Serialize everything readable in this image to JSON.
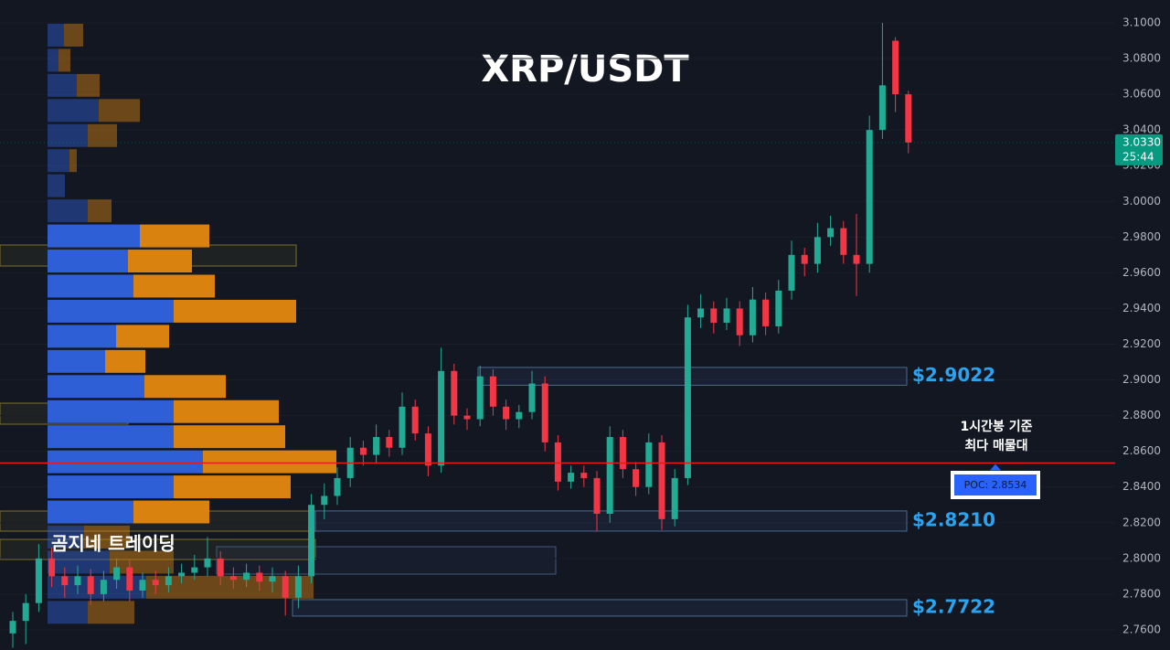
{
  "chart_data": {
    "type": "candlestick",
    "title": "XRP/USDT",
    "watermark": "곰지네 트레이딩",
    "up_color": "#22ab94",
    "down_color": "#f23645",
    "open": [
      2.758,
      2.765,
      2.775,
      2.8,
      2.79,
      2.785,
      2.79,
      2.78,
      2.788,
      2.795,
      2.782,
      2.788,
      2.785,
      2.79,
      2.792,
      2.795,
      2.8,
      2.79,
      2.788,
      2.792,
      2.787,
      2.79,
      2.778,
      2.79,
      2.83,
      2.835,
      2.845,
      2.862,
      2.858,
      2.868,
      2.862,
      2.885,
      2.87,
      2.852,
      2.905,
      2.88,
      2.878,
      2.902,
      2.885,
      2.878,
      2.882,
      2.898,
      2.865,
      2.843,
      2.848,
      2.845,
      2.825,
      2.868,
      2.85,
      2.84,
      2.865,
      2.822,
      2.845,
      2.935,
      2.94,
      2.932,
      2.94,
      2.925,
      2.945,
      2.93,
      2.95,
      2.97,
      2.965,
      2.98,
      2.985,
      2.97,
      2.965,
      3.04,
      3.09,
      3.06
    ],
    "high": [
      2.77,
      2.78,
      2.808,
      2.806,
      2.795,
      2.796,
      2.794,
      2.793,
      2.8,
      2.799,
      2.792,
      2.793,
      2.795,
      2.797,
      2.802,
      2.812,
      2.804,
      2.795,
      2.797,
      2.796,
      2.795,
      2.793,
      2.796,
      2.836,
      2.842,
      2.851,
      2.868,
      2.866,
      2.875,
      2.872,
      2.893,
      2.889,
      2.874,
      2.918,
      2.909,
      2.884,
      2.908,
      2.906,
      2.889,
      2.886,
      2.905,
      2.902,
      2.869,
      2.852,
      2.852,
      2.849,
      2.874,
      2.872,
      2.854,
      2.87,
      2.869,
      2.85,
      2.942,
      2.948,
      2.944,
      2.946,
      2.944,
      2.952,
      2.949,
      2.956,
      2.978,
      2.974,
      2.988,
      2.992,
      2.989,
      2.993,
      3.048,
      3.1,
      3.092,
      3.062
    ],
    "low": [
      2.75,
      2.752,
      2.77,
      2.784,
      2.778,
      2.78,
      2.774,
      2.776,
      2.783,
      2.776,
      2.778,
      2.78,
      2.781,
      2.786,
      2.788,
      2.79,
      2.785,
      2.783,
      2.784,
      2.782,
      2.781,
      2.768,
      2.772,
      2.786,
      2.822,
      2.83,
      2.84,
      2.852,
      2.853,
      2.857,
      2.858,
      2.866,
      2.846,
      2.848,
      2.875,
      2.872,
      2.874,
      2.88,
      2.872,
      2.873,
      2.878,
      2.86,
      2.838,
      2.839,
      2.84,
      2.815,
      2.82,
      2.845,
      2.835,
      2.836,
      2.816,
      2.818,
      2.841,
      2.929,
      2.926,
      2.928,
      2.919,
      2.921,
      2.925,
      2.926,
      2.945,
      2.958,
      2.96,
      2.975,
      2.965,
      2.947,
      2.96,
      3.035,
      3.05,
      3.027
    ],
    "close": [
      2.765,
      2.775,
      2.8,
      2.79,
      2.785,
      2.79,
      2.78,
      2.788,
      2.795,
      2.782,
      2.788,
      2.785,
      2.79,
      2.792,
      2.795,
      2.8,
      2.79,
      2.788,
      2.792,
      2.787,
      2.79,
      2.778,
      2.79,
      2.83,
      2.835,
      2.845,
      2.862,
      2.858,
      2.868,
      2.862,
      2.885,
      2.87,
      2.852,
      2.905,
      2.88,
      2.878,
      2.902,
      2.885,
      2.878,
      2.882,
      2.898,
      2.865,
      2.843,
      2.848,
      2.845,
      2.825,
      2.868,
      2.85,
      2.84,
      2.865,
      2.822,
      2.845,
      2.935,
      2.94,
      2.932,
      2.94,
      2.925,
      2.945,
      2.93,
      2.95,
      2.97,
      2.965,
      2.98,
      2.985,
      2.97,
      2.965,
      3.04,
      3.065,
      3.06,
      3.033
    ],
    "ylim": [
      2.7487,
      3.1128
    ],
    "yticks": [
      {
        "value": 2.76,
        "label": "2.7600"
      },
      {
        "value": 2.78,
        "label": "2.7800"
      },
      {
        "value": 2.8,
        "label": "2.8000"
      },
      {
        "value": 2.82,
        "label": "2.8200"
      },
      {
        "value": 2.84,
        "label": "2.8400"
      },
      {
        "value": 2.86,
        "label": "2.8600"
      },
      {
        "value": 2.88,
        "label": "2.8800"
      },
      {
        "value": 2.9,
        "label": "2.9000"
      },
      {
        "value": 2.92,
        "label": "2.9200"
      },
      {
        "value": 2.94,
        "label": "2.9400"
      },
      {
        "value": 2.96,
        "label": "2.9600"
      },
      {
        "value": 2.98,
        "label": "2.9800"
      },
      {
        "value": 3.0,
        "label": "3.0000"
      },
      {
        "value": 3.02,
        "label": "3.0200"
      },
      {
        "value": 3.04,
        "label": "3.0400"
      },
      {
        "value": 3.06,
        "label": "3.0600"
      },
      {
        "value": 3.08,
        "label": "3.0800"
      },
      {
        "value": 3.1,
        "label": "3.1000"
      }
    ],
    "volume_profile": {
      "buy_color": "#2f5fd6",
      "sell_color": "#d9820f",
      "buy": [
        18,
        12,
        32,
        56,
        44,
        24,
        19,
        44,
        101,
        88,
        94,
        138,
        75,
        63,
        106,
        138,
        138,
        170,
        138,
        94,
        40,
        68,
        108,
        44
      ],
      "sell": [
        21,
        13,
        25,
        45,
        32,
        8,
        0,
        26,
        76,
        70,
        89,
        134,
        58,
        44,
        89,
        115,
        122,
        146,
        128,
        83,
        50,
        70,
        183,
        51
      ]
    },
    "zones": [
      {
        "high": 2.907,
        "low": 2.897,
        "value": 2.9022,
        "label": "$2.9022"
      },
      {
        "high": 2.8266,
        "low": 2.8153,
        "value": 2.821,
        "label": "$2.8210"
      },
      {
        "high": 2.7769,
        "low": 2.7677,
        "value": 2.7722,
        "label": "$2.7722"
      }
    ],
    "poc": {
      "value": 2.8534,
      "label": "POC: 2.8534",
      "color": "#e31b1b"
    },
    "annotation": [
      "1시간봉 기준",
      "최다 매물대"
    ],
    "last_price": {
      "value": 3.033,
      "label": "3.0330",
      "countdown": "25:44",
      "color": "#089981"
    }
  }
}
